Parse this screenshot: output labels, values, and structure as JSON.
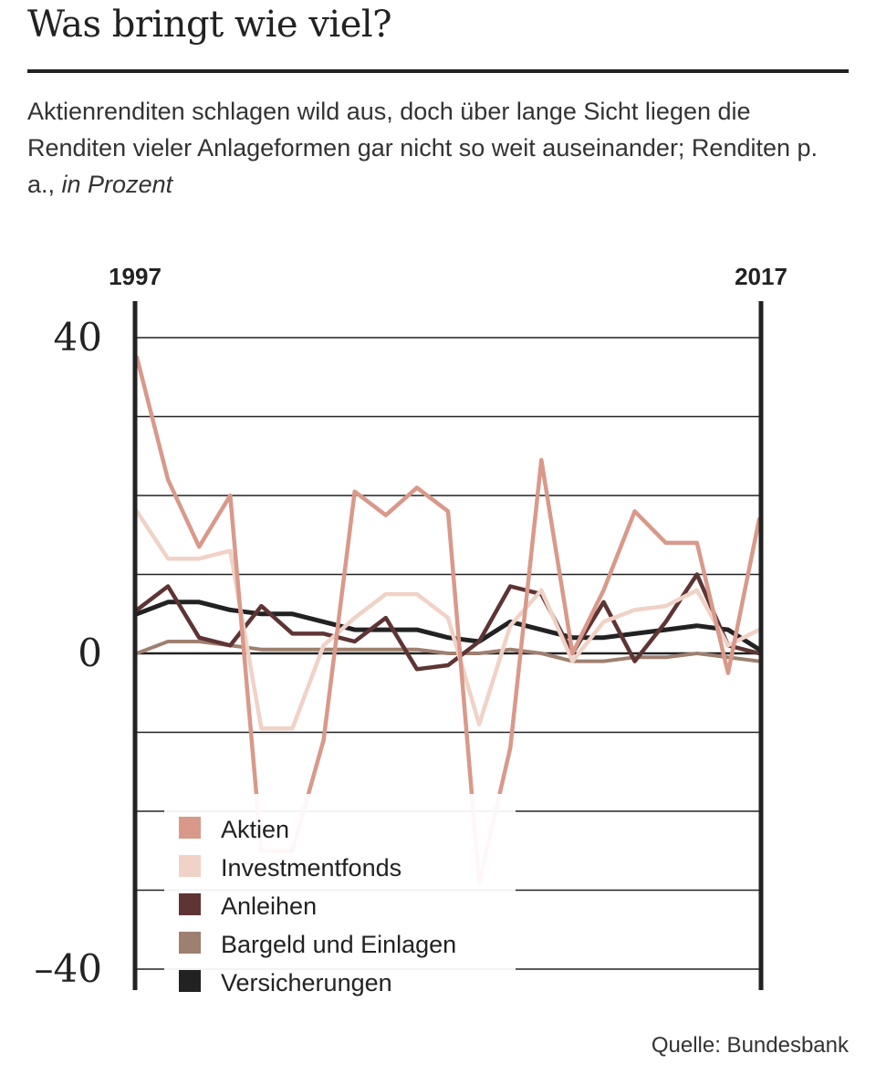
{
  "header": {
    "title": "Was bringt wie viel?",
    "subtitle_main": "Aktienrenditen schlagen wild aus, doch über lange Sicht liegen die Renditen vieler Anlageformen gar nicht so weit auseinander; Renditen p. a., ",
    "subtitle_unit": "in Prozent"
  },
  "footer": {
    "source": "Quelle: Bundesbank"
  },
  "chart_data": {
    "type": "line",
    "x_start_label": "1997",
    "x_end_label": "2017",
    "x": [
      1997,
      1998,
      1999,
      2000,
      2001,
      2002,
      2003,
      2004,
      2005,
      2006,
      2007,
      2008,
      2009,
      2010,
      2011,
      2012,
      2013,
      2014,
      2015,
      2016,
      2017
    ],
    "ylim": [
      -40,
      40
    ],
    "ytick_labels": [
      {
        "value": 40,
        "label": "40"
      },
      {
        "value": 0,
        "label": "0"
      },
      {
        "value": -40,
        "label": "–40"
      }
    ],
    "grid_values": [
      40,
      30,
      20,
      10,
      0,
      -10,
      -20,
      -30,
      -40
    ],
    "legend_position": "bottom-left",
    "series": [
      {
        "name": "Aktien",
        "color": "#d9998a",
        "values": [
          37.5,
          22,
          13.5,
          20,
          -25,
          -25,
          -11,
          20.5,
          17.5,
          21,
          18,
          -29,
          -12,
          24.5,
          0,
          8,
          18,
          14,
          14,
          -2.5,
          17
        ]
      },
      {
        "name": "Investmentfonds",
        "color": "#f0d2c7",
        "values": [
          18,
          12,
          12,
          13,
          -9.5,
          -9.5,
          1,
          4.5,
          7.5,
          7.5,
          4.5,
          -9,
          3.5,
          8,
          -1,
          4,
          5.5,
          6,
          8,
          1,
          3
        ]
      },
      {
        "name": "Anleihen",
        "color": "#5e3434",
        "values": [
          5.5,
          8.5,
          2,
          1,
          6,
          2.5,
          2.5,
          1.5,
          4.5,
          -2,
          -1.5,
          1.5,
          8.5,
          7.5,
          0,
          6.5,
          -1,
          4,
          10,
          1,
          0
        ]
      },
      {
        "name": "Bargeld und Einlagen",
        "color": "#9e8070",
        "values": [
          0,
          1.5,
          1.5,
          1,
          0.5,
          0.5,
          0.5,
          0.5,
          0.5,
          0.5,
          0,
          0,
          0.5,
          0,
          -1,
          -1,
          -0.5,
          -0.5,
          0,
          -0.5,
          -1
        ]
      },
      {
        "name": "Versicherungen",
        "color": "#222222",
        "values": [
          5,
          6.5,
          6.5,
          5.5,
          5,
          5,
          4,
          3,
          3,
          3,
          2,
          1.5,
          4,
          3,
          2,
          2,
          2.5,
          3,
          3.5,
          3,
          0.5
        ]
      }
    ]
  }
}
